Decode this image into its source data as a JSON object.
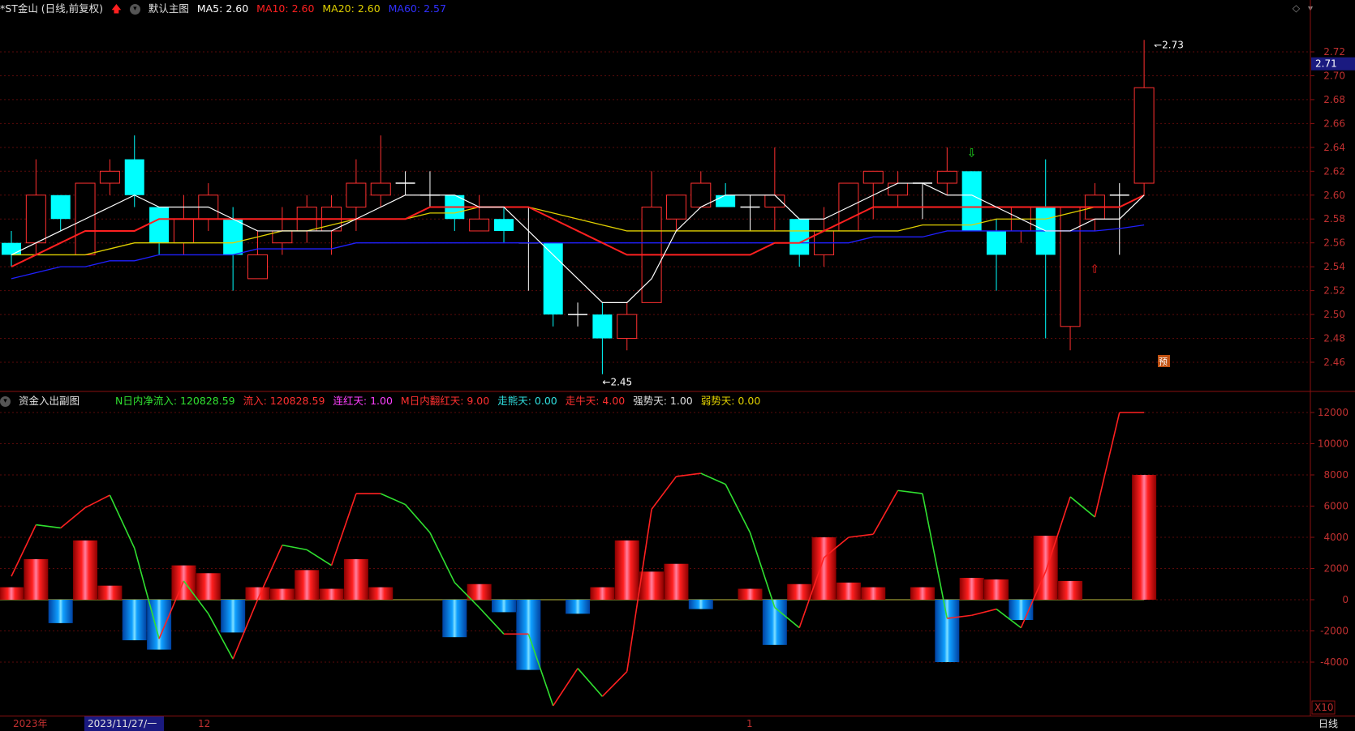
{
  "main_header": {
    "stock": "*ST金山 (日线,前复权)",
    "panel": "默认主图",
    "ma5": "MA5: 2.60",
    "ma10": "MA10: 2.60",
    "ma20": "MA20: 2.60",
    "ma60": "MA60: 2.57",
    "ma5_color": "#ffffff",
    "ma10_color": "#ff2020",
    "ma20_color": "#e0d000",
    "ma60_color": "#2020ff"
  },
  "sub_header": {
    "panel": "资金入出副图",
    "n_net": "N日内净流入: 120828.59",
    "inflow": "流入: 120828.59",
    "consec_red": "连红天: 1.00",
    "m_flip": "M日内翻红天: 9.00",
    "bear_days": "走熊天: 0.00",
    "bull_days": "走牛天: 4.00",
    "strong_days": "强势天: 1.00",
    "weak_days": "弱势天: 0.00"
  },
  "price_axis": [
    "2.72",
    "2.70",
    "2.68",
    "2.66",
    "2.64",
    "2.62",
    "2.60",
    "2.58",
    "2.56",
    "2.54",
    "2.52",
    "2.50",
    "2.48",
    "2.46"
  ],
  "current_price": "2.71",
  "high_label": "2.73",
  "low_label": "2.45",
  "predict_label": "预",
  "flow_axis": [
    "12000",
    "10000",
    "8000",
    "6000",
    "4000",
    "2000",
    "0",
    "-2000",
    "-4000"
  ],
  "x10_label": "X10",
  "timeline": {
    "year": "2023年",
    "date": "2023/11/27/一",
    "m12": "12",
    "m1": "1",
    "period": "日线"
  },
  "chart_data": {
    "type": "candlestick",
    "candles": [
      [
        2.56,
        2.55,
        2.57,
        2.54
      ],
      [
        2.56,
        2.6,
        2.63,
        2.55
      ],
      [
        2.6,
        2.58,
        2.6,
        2.57
      ],
      [
        2.55,
        2.61,
        2.61,
        2.55
      ],
      [
        2.61,
        2.62,
        2.63,
        2.6
      ],
      [
        2.63,
        2.6,
        2.65,
        2.59
      ],
      [
        2.59,
        2.56,
        2.59,
        2.55
      ],
      [
        2.56,
        2.58,
        2.6,
        2.55
      ],
      [
        2.58,
        2.6,
        2.61,
        2.57
      ],
      [
        2.58,
        2.55,
        2.59,
        2.52
      ],
      [
        2.53,
        2.55,
        2.57,
        2.53
      ],
      [
        2.56,
        2.57,
        2.59,
        2.55
      ],
      [
        2.57,
        2.59,
        2.6,
        2.56
      ],
      [
        2.57,
        2.59,
        2.6,
        2.55
      ],
      [
        2.59,
        2.61,
        2.63,
        2.57
      ],
      [
        2.6,
        2.61,
        2.65,
        2.59
      ],
      [
        2.61,
        2.61,
        2.62,
        2.6
      ],
      [
        2.6,
        2.6,
        2.62,
        2.59
      ],
      [
        2.6,
        2.58,
        2.6,
        2.57
      ],
      [
        2.57,
        2.58,
        2.6,
        2.57
      ],
      [
        2.58,
        2.57,
        2.59,
        2.56
      ],
      [
        2.56,
        2.56,
        2.59,
        2.52
      ],
      [
        2.56,
        2.5,
        2.56,
        2.49
      ],
      [
        2.5,
        2.5,
        2.51,
        2.49
      ],
      [
        2.5,
        2.48,
        2.51,
        2.45
      ],
      [
        2.48,
        2.5,
        2.51,
        2.47
      ],
      [
        2.51,
        2.59,
        2.62,
        2.51
      ],
      [
        2.58,
        2.6,
        2.6,
        2.57
      ],
      [
        2.59,
        2.61,
        2.62,
        2.59
      ],
      [
        2.6,
        2.59,
        2.61,
        2.59
      ],
      [
        2.59,
        2.59,
        2.6,
        2.57
      ],
      [
        2.59,
        2.6,
        2.64,
        2.57
      ],
      [
        2.58,
        2.55,
        2.58,
        2.54
      ],
      [
        2.55,
        2.57,
        2.59,
        2.54
      ],
      [
        2.57,
        2.61,
        2.61,
        2.57
      ],
      [
        2.61,
        2.62,
        2.62,
        2.58
      ],
      [
        2.6,
        2.61,
        2.62,
        2.59
      ],
      [
        2.61,
        2.61,
        2.61,
        2.58
      ],
      [
        2.61,
        2.62,
        2.64,
        2.6
      ],
      [
        2.62,
        2.57,
        2.62,
        2.57
      ],
      [
        2.57,
        2.55,
        2.58,
        2.52
      ],
      [
        2.57,
        2.59,
        2.59,
        2.56
      ],
      [
        2.59,
        2.55,
        2.63,
        2.48
      ],
      [
        2.49,
        2.59,
        2.59,
        2.47
      ],
      [
        2.58,
        2.6,
        2.61,
        2.57
      ],
      [
        2.6,
        2.6,
        2.61,
        2.55
      ],
      [
        2.61,
        2.69,
        2.73,
        2.6
      ]
    ],
    "ma5": [
      2.55,
      2.56,
      2.57,
      2.58,
      2.59,
      2.6,
      2.59,
      2.59,
      2.59,
      2.58,
      2.57,
      2.57,
      2.57,
      2.57,
      2.58,
      2.59,
      2.6,
      2.6,
      2.6,
      2.59,
      2.59,
      2.57,
      2.55,
      2.53,
      2.51,
      2.51,
      2.53,
      2.57,
      2.59,
      2.6,
      2.6,
      2.6,
      2.58,
      2.58,
      2.59,
      2.6,
      2.61,
      2.61,
      2.6,
      2.6,
      2.59,
      2.58,
      2.57,
      2.57,
      2.58,
      2.58,
      2.6
    ],
    "ma10": [
      2.54,
      2.55,
      2.56,
      2.57,
      2.57,
      2.57,
      2.58,
      2.58,
      2.58,
      2.58,
      2.58,
      2.58,
      2.58,
      2.58,
      2.58,
      2.58,
      2.58,
      2.59,
      2.59,
      2.59,
      2.59,
      2.59,
      2.58,
      2.57,
      2.56,
      2.55,
      2.55,
      2.55,
      2.55,
      2.55,
      2.55,
      2.56,
      2.56,
      2.57,
      2.58,
      2.59,
      2.59,
      2.59,
      2.59,
      2.59,
      2.59,
      2.59,
      2.59,
      2.59,
      2.59,
      2.59,
      2.6
    ],
    "ma20": [
      2.55,
      2.55,
      2.55,
      2.55,
      2.555,
      2.56,
      2.56,
      2.56,
      2.56,
      2.56,
      2.565,
      2.57,
      2.57,
      2.575,
      2.58,
      2.58,
      2.58,
      2.585,
      2.585,
      2.59,
      2.59,
      2.59,
      2.585,
      2.58,
      2.575,
      2.57,
      2.57,
      2.57,
      2.57,
      2.57,
      2.57,
      2.57,
      2.57,
      2.57,
      2.57,
      2.57,
      2.57,
      2.575,
      2.575,
      2.575,
      2.58,
      2.58,
      2.58,
      2.585,
      2.59,
      2.59,
      2.6
    ],
    "ma60": [
      2.53,
      2.535,
      2.54,
      2.54,
      2.545,
      2.545,
      2.55,
      2.55,
      2.55,
      2.55,
      2.555,
      2.555,
      2.555,
      2.555,
      2.56,
      2.56,
      2.56,
      2.56,
      2.56,
      2.56,
      2.56,
      2.56,
      2.56,
      2.56,
      2.56,
      2.56,
      2.56,
      2.56,
      2.56,
      2.56,
      2.56,
      2.56,
      2.56,
      2.56,
      2.56,
      2.565,
      2.565,
      2.565,
      2.57,
      2.57,
      2.57,
      2.57,
      2.57,
      2.57,
      2.57,
      2.572,
      2.575
    ],
    "flow_bars": [
      800,
      2600,
      -1500,
      3800,
      900,
      -2600,
      -3200,
      2200,
      1700,
      -2100,
      800,
      700,
      1900,
      700,
      2600,
      800,
      0,
      0,
      -2400,
      1000,
      -800,
      -4500,
      0,
      -900,
      800,
      3800,
      1800,
      2300,
      -600,
      0,
      700,
      -2900,
      1000,
      4000,
      1100,
      800,
      0,
      800,
      -4000,
      1400,
      1300,
      -1300,
      4100,
      1200,
      0,
      0,
      8000
    ],
    "flow_line": [
      1500,
      4800,
      4600,
      5900,
      6700,
      3300,
      -2500,
      1200,
      -900,
      -3800,
      0,
      3500,
      3200,
      2200,
      6800,
      6800,
      6100,
      4300,
      1100,
      -500,
      -2200,
      -2200,
      -6800,
      -4400,
      -6200,
      -4600,
      5800,
      7900,
      8100,
      7400,
      4300,
      -500,
      -1800,
      2700,
      4000,
      4200,
      7000,
      6800,
      -1200,
      -1000,
      -600,
      -1800,
      1800,
      6600,
      5300,
      12000,
      12000
    ]
  }
}
